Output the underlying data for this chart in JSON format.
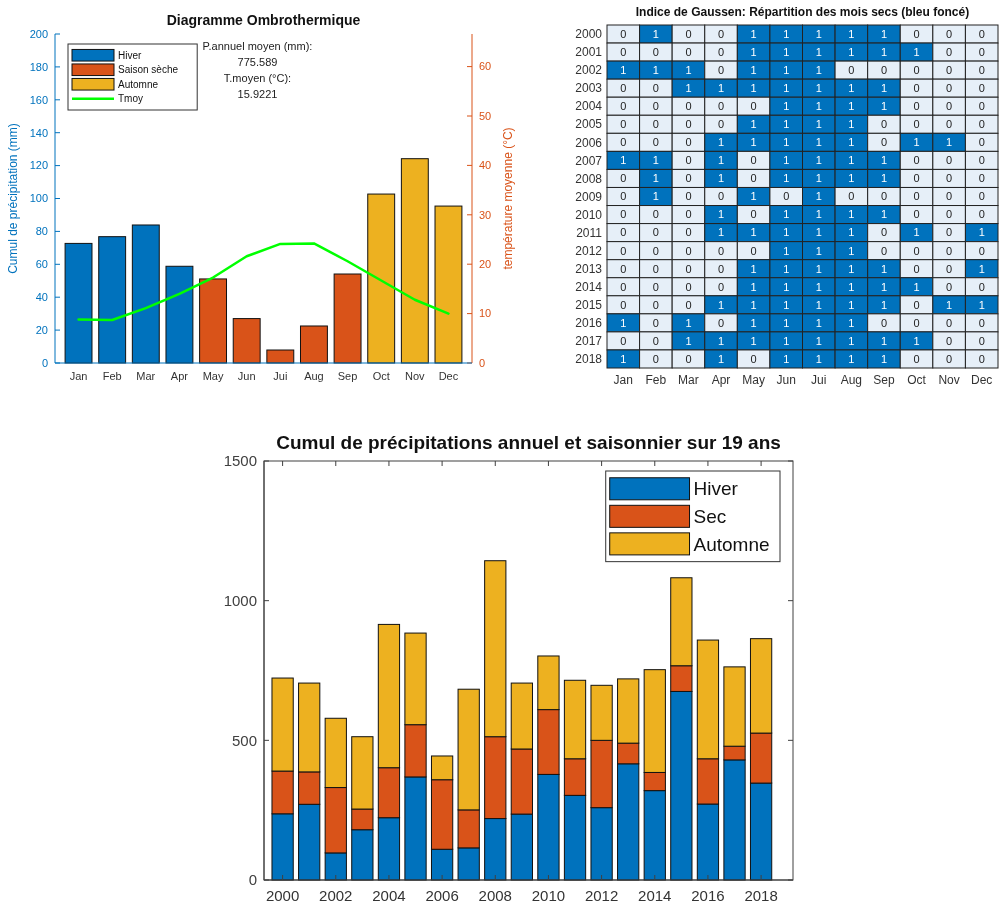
{
  "chart_data": [
    {
      "type": "bar",
      "title": "Diagramme Ombrothermique",
      "ylabel": "Cumul de précipitation (mm)",
      "y2label": "température moyenne (°C)",
      "annotations": [
        "P.annuel moyen (mm):",
        "775.589",
        "T.moyen (°C):",
        "15.9221"
      ],
      "categories": [
        "Jan",
        "Feb",
        "Mar",
        "Apr",
        "May",
        "Jun",
        "Jui",
        "Aug",
        "Sep",
        "Oct",
        "Nov",
        "Dec"
      ],
      "series": [
        {
          "name": "Hiver",
          "color": "#0072bd",
          "values": [
            72.7,
            76.8,
            83.9,
            58.8,
            null,
            null,
            null,
            null,
            null,
            null,
            null,
            null
          ]
        },
        {
          "name": "Saison sèche",
          "color": "#d95319",
          "values": [
            null,
            null,
            null,
            null,
            51.1,
            27,
            7.9,
            22.5,
            54.1,
            null,
            null,
            null
          ]
        },
        {
          "name": "Automne",
          "color": "#edb120",
          "values": [
            null,
            null,
            null,
            null,
            null,
            null,
            null,
            null,
            null,
            102.7,
            124.2,
            95.4
          ]
        },
        {
          "name": "Tmoy",
          "type": "line",
          "axis": "y2",
          "color": "#00ff00",
          "values": [
            8.8,
            8.7,
            11.1,
            14.0,
            17.3,
            21.6,
            24.1,
            24.2,
            20.6,
            16.7,
            12.8,
            10.0
          ]
        }
      ],
      "ylim": [
        0,
        200
      ],
      "yticks": [
        0,
        20,
        40,
        60,
        80,
        100,
        120,
        140,
        160,
        180,
        200
      ],
      "y2lim": [
        0,
        66.6
      ],
      "y2ticks": [
        0,
        10,
        20,
        30,
        40,
        50,
        60
      ],
      "legend": "top left",
      "grid": false
    },
    {
      "type": "heatmap",
      "title": "Indice de Gaussen: Répartition des mois secs (bleu foncé)",
      "categories": [
        "Jan",
        "Feb",
        "Mar",
        "Apr",
        "May",
        "Jun",
        "Jui",
        "Aug",
        "Sep",
        "Oct",
        "Nov",
        "Dec"
      ],
      "y_categories": [
        "2000",
        "2001",
        "2002",
        "2003",
        "2004",
        "2005",
        "2006",
        "2007",
        "2008",
        "2009",
        "2010",
        "2011",
        "2012",
        "2013",
        "2014",
        "2015",
        "2016",
        "2017",
        "2018"
      ],
      "colors": [
        "#e6eff8",
        "#0072bd"
      ],
      "data_labels": true,
      "cells": [
        [
          0,
          1,
          0,
          0,
          1,
          1,
          1,
          1,
          1,
          0,
          0,
          0
        ],
        [
          0,
          0,
          0,
          0,
          1,
          1,
          1,
          1,
          1,
          1,
          0,
          0
        ],
        [
          1,
          1,
          1,
          0,
          1,
          1,
          1,
          0,
          0,
          0,
          0,
          0
        ],
        [
          0,
          0,
          1,
          1,
          1,
          1,
          1,
          1,
          1,
          0,
          0,
          0
        ],
        [
          0,
          0,
          0,
          0,
          0,
          1,
          1,
          1,
          1,
          0,
          0,
          0
        ],
        [
          0,
          0,
          0,
          0,
          1,
          1,
          1,
          1,
          0,
          0,
          0,
          0
        ],
        [
          0,
          0,
          0,
          1,
          1,
          1,
          1,
          1,
          0,
          1,
          1,
          0
        ],
        [
          1,
          1,
          0,
          1,
          0,
          1,
          1,
          1,
          1,
          0,
          0,
          0
        ],
        [
          0,
          1,
          0,
          1,
          0,
          1,
          1,
          1,
          1,
          0,
          0,
          0
        ],
        [
          0,
          1,
          0,
          0,
          1,
          0,
          1,
          0,
          0,
          0,
          0,
          0
        ],
        [
          0,
          0,
          0,
          1,
          0,
          1,
          1,
          1,
          1,
          0,
          0,
          0
        ],
        [
          0,
          0,
          0,
          1,
          1,
          1,
          1,
          1,
          0,
          1,
          0,
          1
        ],
        [
          0,
          0,
          0,
          0,
          0,
          1,
          1,
          1,
          0,
          0,
          0,
          0
        ],
        [
          0,
          0,
          0,
          0,
          1,
          1,
          1,
          1,
          1,
          0,
          0,
          1
        ],
        [
          0,
          0,
          0,
          0,
          1,
          1,
          1,
          1,
          1,
          1,
          0,
          0
        ],
        [
          0,
          0,
          0,
          1,
          1,
          1,
          1,
          1,
          1,
          0,
          1,
          1
        ],
        [
          1,
          0,
          1,
          0,
          1,
          1,
          1,
          1,
          0,
          0,
          0,
          0
        ],
        [
          0,
          0,
          1,
          1,
          1,
          1,
          1,
          1,
          1,
          1,
          0,
          0
        ],
        [
          1,
          0,
          0,
          1,
          0,
          1,
          1,
          1,
          1,
          0,
          0,
          0
        ]
      ]
    },
    {
      "type": "bar",
      "stacked": true,
      "title": "Cumul de précipitations annuel et saisonnier sur 19 ans",
      "x": [
        2000,
        2001,
        2002,
        2003,
        2004,
        2005,
        2006,
        2007,
        2008,
        2009,
        2010,
        2011,
        2012,
        2013,
        2014,
        2015,
        2016,
        2017,
        2018
      ],
      "series": [
        {
          "name": "Hiver",
          "color": "#0072bd",
          "values": [
            237,
            271,
            97,
            180,
            223,
            369,
            110,
            115,
            220,
            236,
            378,
            303,
            259,
            416,
            320,
            675,
            272,
            430,
            347
          ]
        },
        {
          "name": "Sec",
          "color": "#d95319",
          "values": [
            153,
            116,
            234,
            74,
            179,
            187,
            249,
            136,
            293,
            233,
            232,
            131,
            241,
            74,
            65,
            92,
            162,
            49,
            179
          ]
        },
        {
          "name": "Automne",
          "color": "#edb120",
          "values": [
            333,
            318,
            248,
            259,
            513,
            328,
            85,
            432,
            630,
            236,
            192,
            281,
            197,
            230,
            368,
            315,
            425,
            284,
            338
          ]
        }
      ],
      "xlim": [
        1999.3,
        2019.2
      ],
      "xticks": [
        2000,
        2002,
        2004,
        2006,
        2008,
        2010,
        2012,
        2014,
        2016,
        2018
      ],
      "ylim": [
        0,
        1500
      ],
      "yticks": [
        0,
        500,
        1000,
        1500
      ],
      "legend": "top right",
      "grid": false
    }
  ]
}
